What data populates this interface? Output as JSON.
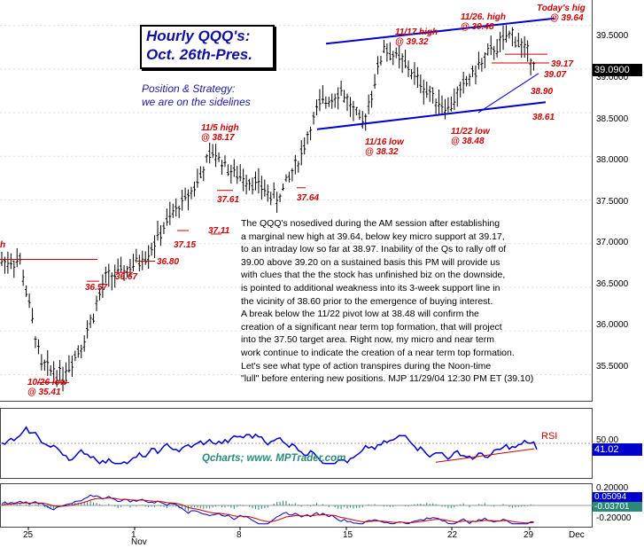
{
  "title_box": {
    "line1": "Hourly QQQ's:",
    "line2": "Oct. 26th-Pres."
  },
  "strategy": {
    "line1": "Position & Strategy:",
    "line2": "we are on the sidelines"
  },
  "commentary": [
    "The QQQ's nosedived during the AM session after establishing",
    "a marginal new high at 39.64, below key micro support at 39.17,",
    "to an intraday low so far at 38.97. Inability of the Qs to rally off of",
    "39.00 above 39.20 on a sustained basis this PM will provide us",
    "with clues that the the stock has unfinished biz on the downside,",
    "is pointed to additional weakness into its 3-week support line in",
    "the vicinity of 38.60 prior to the emergence of buying interest.",
    "A break below the 11/22 pivot low at 38.48 will confirm the",
    "creation of a significant near term top formation, that will project",
    "into the 37.50 target area. Right now, my micro and near term",
    "work continue to indicate the creation of a near term top formation.",
    "Let's see what type of action transpires during the Noon-time",
    "\"lull\" before entering new positions. MJP  11/29/04 12:30 PM ET (39.10)"
  ],
  "watermark": "Qcharts; www. MPTrader.com",
  "annotations": {
    "todays_high": {
      "line1": "Today's hig",
      "line2": "@ 39.64"
    },
    "nov26_high": {
      "line1": "11/26. high",
      "line2": "@ 39.48"
    },
    "nov17_high": {
      "line1": "11/17 high",
      "line2": "@ 39.32"
    },
    "nov5_high": {
      "line1": "11/5 high",
      "line2": "@ 38.17"
    },
    "nov16_low": {
      "line1": "11/16 low",
      "line2": "@ 38.32"
    },
    "nov22_low": {
      "line1": "11/22 low",
      "line2": "@ 38.48"
    },
    "oct26_low": {
      "line1": "10/26 low",
      "line2": "@ 35.41"
    },
    "lvl_3917": "39.17",
    "lvl_3907": "39.07",
    "lvl_3890": "38.90",
    "lvl_3861": "38.61",
    "lvl_3764": "37.64",
    "lvl_3761": "37.61",
    "lvl_3711": "37.11",
    "lvl_3715": "37.15",
    "lvl_3680": "36.80",
    "lvl_3667": "36.67",
    "lvl_3657": "36.57",
    "left_h": "h",
    "rsi_label": "RSI"
  },
  "price_axis": {
    "ticks": [
      "39.5000",
      "39.0000",
      "38.5000",
      "38.0000",
      "37.5000",
      "37.0000",
      "36.5000",
      "36.0000",
      "35.5000"
    ],
    "current": "39.0900"
  },
  "rsi_axis": {
    "tick": "50.00",
    "current": "41.02"
  },
  "macd_axis": {
    "ticks": [
      "0.20000",
      "-0.20000"
    ],
    "value1": "0.05094",
    "value2": "-0.03701"
  },
  "x_axis": {
    "ticks": [
      "25",
      "1",
      "8",
      "15",
      "22",
      "29",
      "Dec"
    ],
    "month_label": "Nov"
  },
  "colors": {
    "bars": "#000000",
    "trendline": "#0000cc",
    "annotation": "#cc0000",
    "title_text": "#1010a0",
    "rsi_line": "#0000cc",
    "macd_line1": "#0000cc",
    "macd_line2": "#cc0000",
    "histogram": "#2a8a7a",
    "watermark": "#2a8a7a"
  },
  "chart_data": {
    "type": "ohlc",
    "title": "Hourly QQQ's: Oct. 26th-Pres.",
    "ylim": [
      35.2,
      39.75
    ],
    "x": [
      "10/25",
      "10/26",
      "10/27",
      "10/28",
      "10/29",
      "11/1",
      "11/2",
      "11/3",
      "11/4",
      "11/5",
      "11/8",
      "11/9",
      "11/10",
      "11/11",
      "11/12",
      "11/15",
      "11/16",
      "11/17",
      "11/18",
      "11/19",
      "11/22",
      "11/23",
      "11/24",
      "11/26",
      "11/29"
    ],
    "series": [
      {
        "values": [
          36.8,
          35.6,
          35.5,
          35.9,
          36.6,
          36.7,
          36.9,
          37.3,
          37.6,
          38.05,
          37.8,
          37.7,
          37.5,
          37.95,
          38.6,
          38.75,
          38.35,
          39.25,
          39.05,
          38.75,
          38.55,
          38.9,
          39.2,
          39.4,
          39.09
        ]
      }
    ],
    "marked_levels": {
      "todays_high": 39.64,
      "nov26_high": 39.48,
      "nov17_high": 39.32,
      "nov5_high": 38.17,
      "nov16_low": 38.32,
      "nov22_low": 38.48,
      "oct26_low": 35.41,
      "micro_support": 39.17,
      "intraday_low": 38.97
    },
    "channel": {
      "upper": [
        [
          11.15,
          38.95
        ],
        [
          11.29,
          39.58
        ]
      ],
      "lower": [
        [
          11.15,
          38.28
        ],
        [
          11.29,
          38.61
        ]
      ]
    },
    "rsi": {
      "ylim": [
        0,
        100
      ],
      "mid": 50,
      "last": 41.02
    },
    "macd": {
      "ylim": [
        -0.2,
        0.2
      ],
      "last": [
        0.05094,
        -0.03701
      ]
    }
  }
}
